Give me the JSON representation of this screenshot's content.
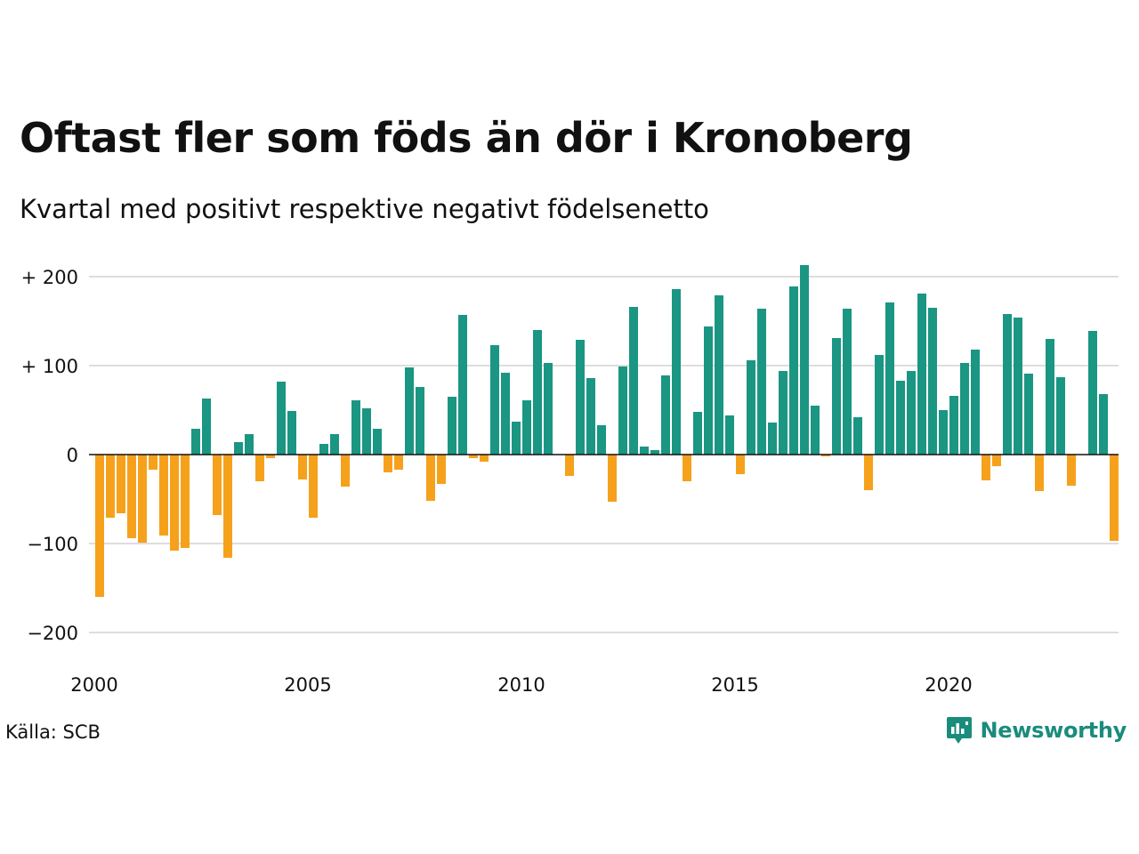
{
  "header": {
    "title": "Oftast fler som föds än dör i Kronoberg",
    "subtitle": "Kvartal med positivt respektive negativt födelsenetto"
  },
  "footer": {
    "source": "Källa: SCB",
    "brand": "Newsworthy",
    "brand_icon": "bar-chart-speech-bubble-icon"
  },
  "colors": {
    "positive": "#1a9683",
    "negative": "#f6a11c",
    "grid": "#dddddd",
    "baseline": "#111111",
    "brand": "#1a8c7c"
  },
  "chart_data": {
    "type": "bar",
    "title": "Oftast fler som föds än dör i Kronoberg",
    "subtitle": "Kvartal med positivt respektive negativt födelsenetto",
    "xlabel": "",
    "ylabel": "",
    "x_start": "2000 Q1",
    "frequency": "quarterly",
    "ylim": [
      -220,
      220
    ],
    "yticks": [
      200,
      100,
      0,
      -100,
      -200
    ],
    "ytick_labels": [
      "+ 200",
      "+ 100",
      "0",
      "−100",
      "−200"
    ],
    "xticks": [
      2000,
      2005,
      2010,
      2015,
      2020
    ],
    "xtick_labels": [
      "2000",
      "2005",
      "2010",
      "2015",
      "2020"
    ],
    "grid": true,
    "values": [
      -160,
      -71,
      -66,
      -94,
      -99,
      -17,
      -91,
      -108,
      -105,
      29,
      63,
      -68,
      -116,
      14,
      23,
      -30,
      -4,
      82,
      49,
      -28,
      -71,
      12,
      23,
      -36,
      61,
      52,
      29,
      -20,
      -17,
      98,
      76,
      -52,
      -33,
      65,
      157,
      -4,
      -8,
      123,
      92,
      37,
      61,
      140,
      103,
      0,
      -24,
      129,
      86,
      33,
      -53,
      99,
      166,
      9,
      5,
      89,
      186,
      -30,
      48,
      144,
      179,
      44,
      -22,
      106,
      164,
      36,
      94,
      189,
      213,
      55,
      -2,
      131,
      164,
      42,
      -40,
      112,
      171,
      83,
      94,
      181,
      165,
      50,
      66,
      103,
      118,
      -29,
      -13,
      158,
      154,
      91,
      -41,
      130,
      87,
      -35,
      0,
      139,
      68,
      -97
    ]
  }
}
